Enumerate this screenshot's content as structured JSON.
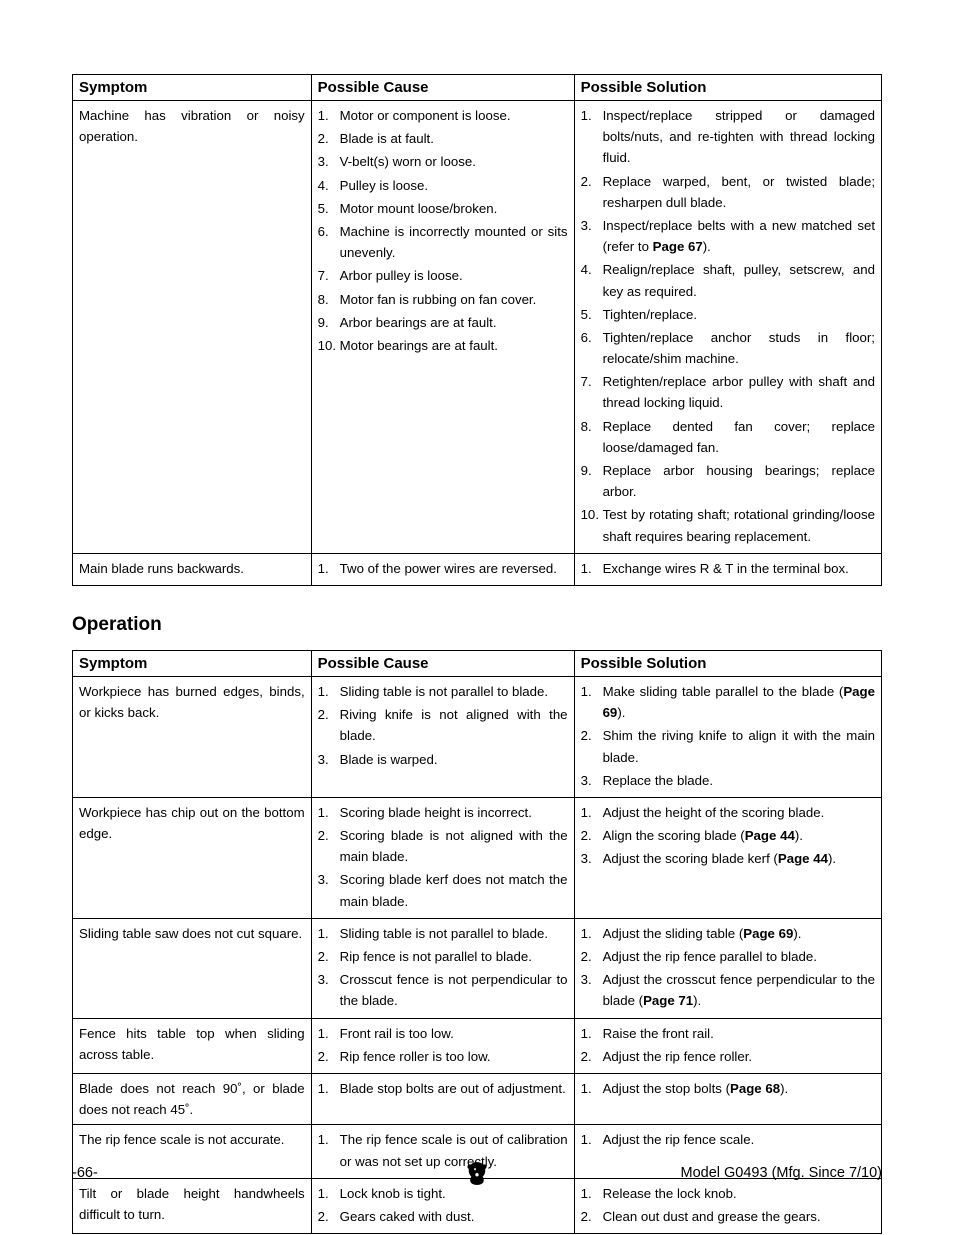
{
  "table1": {
    "headers": [
      "Symptom",
      "Possible Cause",
      "Possible Solution"
    ],
    "rows": [
      {
        "symptom": "Machine has vibration or noisy operation.",
        "causes": [
          "Motor or component is loose.",
          "Blade is at fault.",
          "V-belt(s) worn or loose.",
          "Pulley is loose.",
          "Motor mount loose/broken.",
          "Machine is incorrectly mounted or sits unevenly.",
          "Arbor pulley is loose.",
          "Motor fan is rubbing on fan cover.",
          "Arbor bearings are at fault.",
          "Motor bearings are at fault."
        ],
        "solutions": [
          "Inspect/replace stripped or damaged bolts/nuts, and re-tighten with thread locking fluid.",
          "Replace warped, bent, or twisted blade; resharpen dull blade.",
          "Inspect/replace belts with a new matched set (refer to <b>Page 67</b>).",
          "Realign/replace shaft, pulley, setscrew, and key as required.",
          "Tighten/replace.",
          "Tighten/replace anchor studs in floor; relocate/shim machine.",
          "Retighten/replace arbor pulley with shaft and thread locking liquid.",
          "Replace dented fan cover; replace loose/damaged fan.",
          "Replace arbor housing bearings; replace arbor.",
          "Test by rotating shaft; rotational grinding/loose shaft requires bearing replacement."
        ]
      },
      {
        "symptom": "Main blade runs backwards.",
        "causes": [
          "Two of the power wires are reversed."
        ],
        "solutions": [
          "Exchange wires R & T in the terminal box."
        ]
      }
    ]
  },
  "section_heading": "Operation",
  "table2": {
    "headers": [
      "Symptom",
      "Possible Cause",
      "Possible Solution"
    ],
    "rows": [
      {
        "symptom": "Workpiece has burned edges, binds, or kicks back.",
        "causes": [
          "Sliding table is not parallel to blade.",
          "Riving knife is not aligned with the blade.",
          "Blade is warped."
        ],
        "solutions": [
          "Make sliding table parallel to the blade&nbsp;(<b>Page 69</b>).",
          "Shim the riving knife to align it with the main blade.",
          "Replace the blade."
        ]
      },
      {
        "symptom": "Workpiece has chip out on the bottom edge.",
        "causes": [
          "Scoring blade height is incorrect.",
          "Scoring blade is not aligned with the main blade.",
          "Scoring blade kerf does not match the main blade."
        ],
        "solutions": [
          "Adjust the height of the scoring blade.",
          "Align the scoring blade (<b>Page 44</b>).",
          "Adjust the scoring blade kerf (<b>Page 44</b>)."
        ]
      },
      {
        "symptom": "Sliding table saw does not cut square.",
        "causes": [
          "Sliding table is not parallel to blade.",
          "Rip fence is not parallel to blade.",
          "Crosscut fence is not perpendicular to the blade."
        ],
        "solutions": [
          "Adjust the sliding table (<b>Page 69</b>).",
          "Adjust the rip fence parallel to blade.",
          "Adjust the crosscut fence perpendicular to the blade (<b>Page 71</b>)."
        ]
      },
      {
        "symptom": "Fence hits table top when sliding across table.",
        "causes": [
          "Front rail is too low.",
          "Rip fence roller is too low."
        ],
        "solutions": [
          "Raise the front rail.",
          "Adjust the rip fence roller."
        ]
      },
      {
        "symptom": "Blade does not reach 90˚, or blade does not reach 45˚.",
        "causes": [
          "Blade stop bolts are out of adjustment."
        ],
        "solutions": [
          "Adjust the stop bolts (<b>Page 68</b>)."
        ]
      },
      {
        "symptom": "The rip fence scale is not accurate.",
        "causes": [
          "The rip fence scale is out of calibration or was not set up correctly."
        ],
        "solutions": [
          "Adjust the rip fence scale."
        ]
      },
      {
        "symptom": "Tilt or blade height handwheels difficult to turn.",
        "causes": [
          "Lock knob is tight.",
          "Gears caked with dust."
        ],
        "solutions": [
          "Release the lock knob.",
          "Clean out dust and grease the gears."
        ]
      }
    ]
  },
  "footer": {
    "left": "-66-",
    "right": "Model G0493 (Mfg. Since 7/10)"
  }
}
